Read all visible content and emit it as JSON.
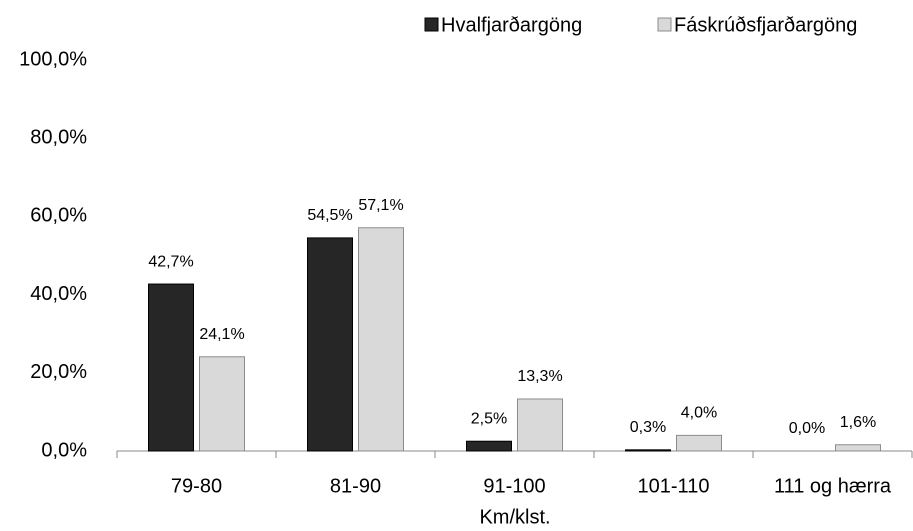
{
  "chart_data": {
    "type": "bar",
    "x_label": "Km/klst.",
    "categories": [
      "79-80",
      "81-90",
      "91-100",
      "101-110",
      "111 og hærra"
    ],
    "series": [
      {
        "name": "Hvalfjarðargöng",
        "color": "#262626",
        "values": [
          42.7,
          54.5,
          2.5,
          0.3,
          0.0
        ],
        "value_labels": [
          "42,7%",
          "54,5%",
          "2,5%",
          "0,3%",
          "0,0%"
        ]
      },
      {
        "name": "Fáskrúðsfjarðargöng",
        "color": "#d9d9d9",
        "values": [
          24.1,
          57.1,
          13.3,
          4.0,
          1.6
        ],
        "value_labels": [
          "24,1%",
          "57,1%",
          "13,3%",
          "4,0%",
          "1,6%"
        ]
      }
    ],
    "ylim": [
      0,
      100
    ],
    "yticks": [
      {
        "value": 0,
        "label": "0,0%"
      },
      {
        "value": 20,
        "label": "20,0%"
      },
      {
        "value": 40,
        "label": "40,0%"
      },
      {
        "value": 60,
        "label": "60,0%"
      },
      {
        "value": 80,
        "label": "80,0%"
      },
      {
        "value": 100,
        "label": "100,0%"
      }
    ],
    "grid": false,
    "legend": "top-right"
  }
}
